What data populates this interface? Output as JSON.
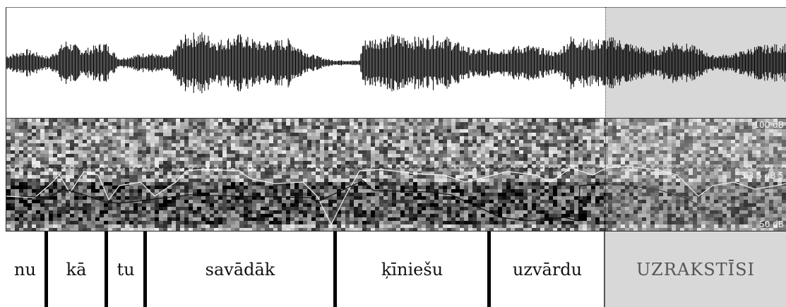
{
  "waveform": {
    "selection": {
      "highlight_color": "#d8d8d8"
    }
  },
  "spectrogram": {
    "labels": {
      "top": "100 dB",
      "pitch": "3.3 5 dB 5",
      "bottom": "50 dB"
    }
  },
  "text_tier": {
    "segments": [
      {
        "label": "nu"
      },
      {
        "label": "kā"
      },
      {
        "label": "tu"
      },
      {
        "label": "savādāk"
      },
      {
        "label": "ķīniešu"
      },
      {
        "label": "uzvārdu"
      },
      {
        "label": "UZRAKSTĪSI",
        "selected": true
      }
    ]
  }
}
